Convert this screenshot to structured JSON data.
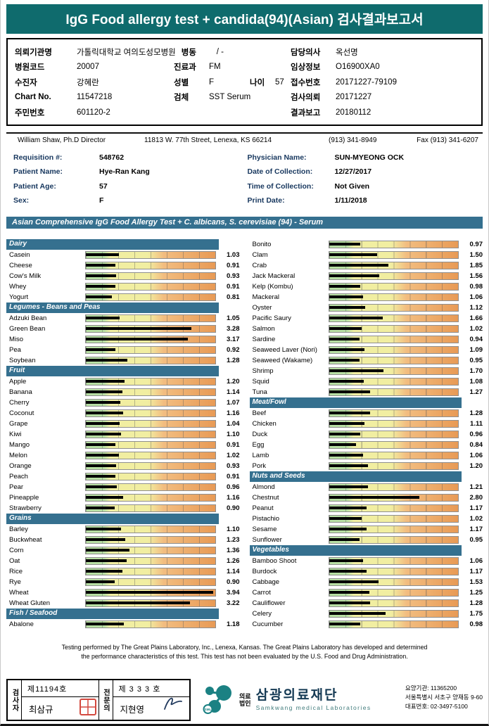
{
  "colors": {
    "header_bg": "#0f6b6d",
    "section_bg": "#35708f",
    "req_label": "#17375e",
    "bar_green": "#b7dfa3",
    "bar_yellow": "#f1eea1",
    "bar_orange": "#f2bd80",
    "bar_orange_deep": "#e89a55",
    "bar_fill": "#000000",
    "seal_red": "#cc2a1e",
    "logo_teal": "#1b8183",
    "org_navy": "#153a54"
  },
  "header": {
    "title": "IgG Food allergy test + candida(94)(Asian) 검사결과보고서"
  },
  "patient_box": {
    "left_rows": [
      {
        "pairs": [
          {
            "k": "의뢰기관명",
            "v": "가톨릭대학교 여의도성모병원"
          },
          {
            "k": "병동",
            "v": "/ -"
          }
        ]
      },
      {
        "pairs": [
          {
            "k": "병원코드",
            "v": "20007"
          },
          {
            "k": "진료과",
            "v": "FM"
          }
        ]
      },
      {
        "pairs": [
          {
            "k": "수진자",
            "v": "강혜란"
          },
          {
            "k": "성별",
            "v": "F"
          },
          {
            "k": "나이",
            "v": "57"
          }
        ]
      },
      {
        "pairs": [
          {
            "k": "Chart No.",
            "v": "11547218"
          },
          {
            "k": "검체",
            "v": "SST Serum"
          }
        ]
      },
      {
        "pairs": [
          {
            "k": "주민번호",
            "v": "601120-2"
          }
        ]
      }
    ],
    "right_rows": [
      {
        "k": "담당의사",
        "v": "옥선명"
      },
      {
        "k": "임상정보",
        "v": "O16900XA0"
      },
      {
        "k": "접수번호",
        "v": "20171227-79109"
      },
      {
        "k": "검사의뢰",
        "v": "20171227"
      },
      {
        "k": "결과보고",
        "v": "20180112"
      }
    ]
  },
  "lab": {
    "director": "William Shaw, Ph.D  Director",
    "address": "11813 W. 77th Street, Lenexa, KS 66214",
    "phone": "(913) 341-8949",
    "fax": "Fax (913) 341-6207"
  },
  "requisition": {
    "left": [
      {
        "k": "Requisition #:",
        "v": "548762"
      },
      {
        "k": "Patient Name:",
        "v": "Hye-Ran Kang"
      },
      {
        "k": "Patient Age:",
        "v": "57"
      },
      {
        "k": "Sex:",
        "v": "F"
      }
    ],
    "right": [
      {
        "k": "Physician Name:",
        "v": "SUN-MYEONG OCK"
      },
      {
        "k": "Date of Collection:",
        "v": "12/27/2017"
      },
      {
        "k": "Time of Collection:",
        "v": "Not Given"
      },
      {
        "k": "Print Date:",
        "v": "1/11/2018"
      }
    ]
  },
  "test": {
    "title": "Asian Comprehensive IgG Food Allergy Test + C. albicans, S. cerevisiae (94) - Serum"
  },
  "chart_data": {
    "type": "bar",
    "title": "Asian Comprehensive IgG Food Allergy Test + C. albicans, S. cerevisiae (94) - Serum",
    "scale_max": 4,
    "left_sections": [
      {
        "name": "Dairy",
        "items": [
          {
            "label": "Casein",
            "value": "1.03"
          },
          {
            "label": "Cheese",
            "value": "0.91"
          },
          {
            "label": "Cow's Milk",
            "value": "0.93"
          },
          {
            "label": "Whey",
            "value": "0.91"
          },
          {
            "label": "Yogurt",
            "value": "0.81"
          }
        ]
      },
      {
        "name": "Legumes - Beans and Peas",
        "items": [
          {
            "label": "Adzuki Bean",
            "value": "1.05"
          },
          {
            "label": "Green Bean",
            "value": "3.28"
          },
          {
            "label": "Miso",
            "value": "3.17"
          },
          {
            "label": "Pea",
            "value": "0.92"
          },
          {
            "label": "Soybean",
            "value": "1.28"
          }
        ]
      },
      {
        "name": "Fruit",
        "items": [
          {
            "label": "Apple",
            "value": "1.20"
          },
          {
            "label": "Banana",
            "value": "1.14"
          },
          {
            "label": "Cherry",
            "value": "1.07"
          },
          {
            "label": "Coconut",
            "value": "1.16"
          },
          {
            "label": "Grape",
            "value": "1.04"
          },
          {
            "label": "Kiwi",
            "value": "1.10"
          },
          {
            "label": "Mango",
            "value": "0.91"
          },
          {
            "label": "Melon",
            "value": "1.02"
          },
          {
            "label": "Orange",
            "value": "0.93"
          },
          {
            "label": "Peach",
            "value": "0.91"
          },
          {
            "label": "Pear",
            "value": "0.96"
          },
          {
            "label": "Pineapple",
            "value": "1.16"
          },
          {
            "label": "Strawberry",
            "value": "0.90"
          }
        ]
      },
      {
        "name": "Grains",
        "items": [
          {
            "label": "Barley",
            "value": "1.10"
          },
          {
            "label": "Buckwheat",
            "value": "1.23"
          },
          {
            "label": "Corn",
            "value": "1.36"
          },
          {
            "label": "Oat",
            "value": "1.26"
          },
          {
            "label": "Rice",
            "value": "1.14"
          },
          {
            "label": "Rye",
            "value": "0.90"
          },
          {
            "label": "Wheat",
            "value": "3.94"
          },
          {
            "label": "Wheat Gluten",
            "value": "3.22"
          }
        ]
      },
      {
        "name": "Fish / Seafood",
        "items": [
          {
            "label": "Abalone",
            "value": "1.18"
          }
        ]
      }
    ],
    "right_sections": [
      {
        "name": "",
        "items": [
          {
            "label": "Bonito",
            "value": "0.97"
          },
          {
            "label": "Clam",
            "value": "1.50"
          },
          {
            "label": "Crab",
            "value": "1.85"
          },
          {
            "label": "Jack Mackeral",
            "value": "1.56"
          },
          {
            "label": "Kelp (Kombu)",
            "value": "0.98"
          },
          {
            "label": "Mackeral",
            "value": "1.06"
          },
          {
            "label": "Oyster",
            "value": "1.12"
          },
          {
            "label": "Pacific Saury",
            "value": "1.66"
          },
          {
            "label": "Salmon",
            "value": "1.02"
          },
          {
            "label": "Sardine",
            "value": "0.94"
          },
          {
            "label": "Seaweed Laver (Nori)",
            "value": "1.09"
          },
          {
            "label": "Seaweed (Wakame)",
            "value": "0.95"
          },
          {
            "label": "Shrimp",
            "value": "1.70"
          },
          {
            "label": "Squid",
            "value": "1.08"
          },
          {
            "label": "Tuna",
            "value": "1.27"
          }
        ]
      },
      {
        "name": "Meat/Fowl",
        "items": [
          {
            "label": "Beef",
            "value": "1.28"
          },
          {
            "label": "Chicken",
            "value": "1.11"
          },
          {
            "label": "Duck",
            "value": "0.96"
          },
          {
            "label": "Egg",
            "value": "0.84"
          },
          {
            "label": "Lamb",
            "value": "1.06"
          },
          {
            "label": "Pork",
            "value": "1.20"
          }
        ]
      },
      {
        "name": "Nuts and Seeds",
        "items": [
          {
            "label": "Almond",
            "value": "1.21"
          },
          {
            "label": "Chestnut",
            "value": "2.80"
          },
          {
            "label": "Peanut",
            "value": "1.17"
          },
          {
            "label": "Pistachio",
            "value": "1.02"
          },
          {
            "label": "Sesame",
            "value": "1.17"
          },
          {
            "label": "Sunflower",
            "value": "0.95"
          }
        ]
      },
      {
        "name": "Vegetables",
        "items": [
          {
            "label": "Bamboo Shoot",
            "value": "1.06"
          },
          {
            "label": "Burdock",
            "value": "1.17"
          },
          {
            "label": "Cabbage",
            "value": "1.53"
          },
          {
            "label": "Carrot",
            "value": "1.25"
          },
          {
            "label": "Cauliflower",
            "value": "1.28"
          },
          {
            "label": "Celery",
            "value": "1.75"
          },
          {
            "label": "Cucumber",
            "value": "0.98"
          }
        ]
      }
    ]
  },
  "footer": {
    "line1": "Testing performed by The Great Plains Laboratory, Inc., Lenexa, Kansas.  The Great Plains Laboratory has developed and determined",
    "line2": "the performance characteristics of this test.  This test has not been evaluated by the U.S. Food and Drug Administration."
  },
  "bottom": {
    "examiner": {
      "role": "검사자",
      "cert_no": "제11194호",
      "name": "최삼규"
    },
    "specialist": {
      "role": "전문의",
      "cert_no": "제 3 3 3 호",
      "name": "지현영"
    },
    "org": {
      "prefix_top": "의료",
      "prefix_bottom": "법인",
      "name": "삼광의료재단",
      "name_en": "Samkwang medical Laboratories",
      "logo_text": "SML"
    },
    "contact": [
      "요양기관: 11365200",
      "서울특별시 서초구 양재동 9-60",
      "대표번호: 02-3497-5100"
    ]
  }
}
